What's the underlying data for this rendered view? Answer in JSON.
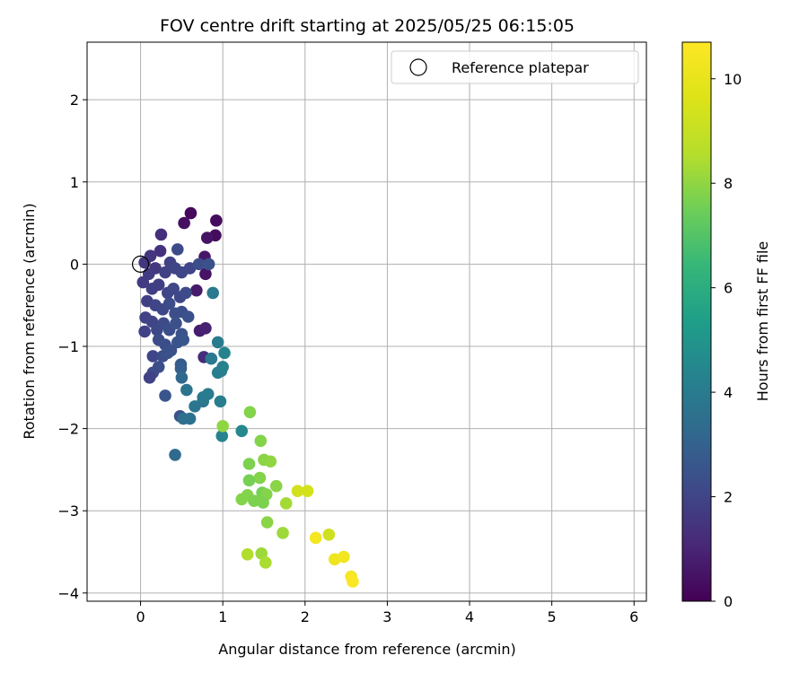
{
  "chart_data": {
    "type": "scatter",
    "title": "FOV centre drift starting at 2025/05/25 06:15:05",
    "xlabel": "Angular distance from reference (arcmin)",
    "ylabel": "Rotation from reference (arcmin)",
    "xlim": [
      -0.65,
      6.15
    ],
    "ylim": [
      -4.1,
      2.7
    ],
    "xticks": [
      0,
      1,
      2,
      3,
      4,
      5,
      6
    ],
    "yticks": [
      -4,
      -3,
      -2,
      -1,
      0,
      1,
      2
    ],
    "xtick_labels": [
      "0",
      "1",
      "2",
      "3",
      "4",
      "5",
      "6"
    ],
    "ytick_labels": [
      "−4",
      "−3",
      "−2",
      "−1",
      "0",
      "1",
      "2"
    ],
    "grid": true,
    "legend": {
      "placement": "top-right",
      "entries": [
        "Reference platepar"
      ]
    },
    "reference_point": {
      "x": 0,
      "y": 0
    },
    "colorbar": {
      "label": "Hours from first FF file",
      "colormap": "viridis",
      "range": [
        0,
        10.7
      ],
      "ticks": [
        0,
        2,
        4,
        6,
        8,
        10
      ],
      "tick_labels": [
        "0",
        "2",
        "4",
        "6",
        "8",
        "10"
      ]
    },
    "points": [
      {
        "x": 0.61,
        "y": 0.62,
        "c": 0.2
      },
      {
        "x": 0.92,
        "y": 0.53,
        "c": 0.3
      },
      {
        "x": 0.53,
        "y": 0.5,
        "c": 0.4
      },
      {
        "x": 0.91,
        "y": 0.35,
        "c": 0.3
      },
      {
        "x": 0.81,
        "y": 0.32,
        "c": 0.5
      },
      {
        "x": 0.78,
        "y": 0.09,
        "c": 0.6
      },
      {
        "x": 0.79,
        "y": -0.12,
        "c": 0.5
      },
      {
        "x": 0.68,
        "y": -0.32,
        "c": 0.7
      },
      {
        "x": 0.72,
        "y": -0.81,
        "c": 0.8
      },
      {
        "x": 0.79,
        "y": -0.78,
        "c": 0.9
      },
      {
        "x": 0.77,
        "y": -1.13,
        "c": 1.2
      },
      {
        "x": 0.25,
        "y": 0.36,
        "c": 1.3
      },
      {
        "x": 0.24,
        "y": 0.16,
        "c": 1.4
      },
      {
        "x": 0.12,
        "y": 0.1,
        "c": 1.5
      },
      {
        "x": 0.05,
        "y": 0.02,
        "c": 1.5
      },
      {
        "x": 0.18,
        "y": -0.05,
        "c": 1.6
      },
      {
        "x": 0.1,
        "y": -0.12,
        "c": 1.7
      },
      {
        "x": 0.03,
        "y": -0.22,
        "c": 1.7
      },
      {
        "x": 0.14,
        "y": -0.3,
        "c": 1.8
      },
      {
        "x": 0.22,
        "y": -0.25,
        "c": 1.8
      },
      {
        "x": 0.3,
        "y": -0.1,
        "c": 1.9
      },
      {
        "x": 0.36,
        "y": 0.02,
        "c": 1.9
      },
      {
        "x": 0.42,
        "y": -0.05,
        "c": 2.0
      },
      {
        "x": 0.45,
        "y": 0.18,
        "c": 2.2
      },
      {
        "x": 0.33,
        "y": -0.35,
        "c": 2.0
      },
      {
        "x": 0.4,
        "y": -0.3,
        "c": 2.1
      },
      {
        "x": 0.48,
        "y": -0.4,
        "c": 2.1
      },
      {
        "x": 0.55,
        "y": -0.35,
        "c": 2.2
      },
      {
        "x": 0.6,
        "y": -0.05,
        "c": 2.0
      },
      {
        "x": 0.71,
        "y": 0.0,
        "c": 2.3
      },
      {
        "x": 0.83,
        "y": 0.0,
        "c": 2.4
      },
      {
        "x": 0.5,
        "y": -0.1,
        "c": 2.1
      },
      {
        "x": 0.08,
        "y": -0.45,
        "c": 1.8
      },
      {
        "x": 0.18,
        "y": -0.5,
        "c": 2.0
      },
      {
        "x": 0.27,
        "y": -0.55,
        "c": 2.1
      },
      {
        "x": 0.35,
        "y": -0.48,
        "c": 2.2
      },
      {
        "x": 0.42,
        "y": -0.6,
        "c": 2.3
      },
      {
        "x": 0.5,
        "y": -0.58,
        "c": 2.3
      },
      {
        "x": 0.58,
        "y": -0.64,
        "c": 2.4
      },
      {
        "x": 0.06,
        "y": -0.65,
        "c": 1.9
      },
      {
        "x": 0.14,
        "y": -0.7,
        "c": 2.0
      },
      {
        "x": 0.05,
        "y": -0.82,
        "c": 1.9
      },
      {
        "x": 0.2,
        "y": -0.8,
        "c": 2.1
      },
      {
        "x": 0.28,
        "y": -0.72,
        "c": 2.2
      },
      {
        "x": 0.35,
        "y": -0.8,
        "c": 2.3
      },
      {
        "x": 0.43,
        "y": -0.72,
        "c": 2.4
      },
      {
        "x": 0.5,
        "y": -0.85,
        "c": 2.5
      },
      {
        "x": 0.22,
        "y": -0.92,
        "c": 2.2
      },
      {
        "x": 0.3,
        "y": -0.98,
        "c": 2.3
      },
      {
        "x": 0.37,
        "y": -1.05,
        "c": 2.4
      },
      {
        "x": 0.45,
        "y": -0.95,
        "c": 2.5
      },
      {
        "x": 0.52,
        "y": -0.92,
        "c": 2.6
      },
      {
        "x": 0.15,
        "y": -1.12,
        "c": 2.0
      },
      {
        "x": 0.27,
        "y": -1.12,
        "c": 2.3
      },
      {
        "x": 0.33,
        "y": -1.08,
        "c": 2.4
      },
      {
        "x": 0.22,
        "y": -1.25,
        "c": 2.3
      },
      {
        "x": 0.15,
        "y": -1.32,
        "c": 2.2
      },
      {
        "x": 0.11,
        "y": -1.38,
        "c": 1.9
      },
      {
        "x": 0.49,
        "y": -1.22,
        "c": 2.8
      },
      {
        "x": 0.49,
        "y": -1.27,
        "c": 2.9
      },
      {
        "x": 0.5,
        "y": -1.38,
        "c": 3.2
      },
      {
        "x": 0.3,
        "y": -1.6,
        "c": 2.6
      },
      {
        "x": 0.48,
        "y": -1.85,
        "c": 2.5
      },
      {
        "x": 0.52,
        "y": -1.88,
        "c": 3.5
      },
      {
        "x": 0.6,
        "y": -1.88,
        "c": 3.6
      },
      {
        "x": 0.56,
        "y": -1.53,
        "c": 3.7
      },
      {
        "x": 0.66,
        "y": -1.73,
        "c": 3.8
      },
      {
        "x": 0.76,
        "y": -1.67,
        "c": 3.8
      },
      {
        "x": 0.76,
        "y": -1.62,
        "c": 3.9
      },
      {
        "x": 0.82,
        "y": -1.58,
        "c": 4.0
      },
      {
        "x": 0.86,
        "y": -1.15,
        "c": 3.9
      },
      {
        "x": 0.94,
        "y": -1.32,
        "c": 4.1
      },
      {
        "x": 0.98,
        "y": -1.3,
        "c": 4.1
      },
      {
        "x": 1.0,
        "y": -1.25,
        "c": 4.2
      },
      {
        "x": 1.02,
        "y": -1.08,
        "c": 4.3
      },
      {
        "x": 0.94,
        "y": -0.95,
        "c": 4.0
      },
      {
        "x": 0.88,
        "y": -0.35,
        "c": 3.9
      },
      {
        "x": 0.42,
        "y": -2.32,
        "c": 3.3
      },
      {
        "x": 0.97,
        "y": -1.67,
        "c": 4.1
      },
      {
        "x": 0.99,
        "y": -2.09,
        "c": 4.3
      },
      {
        "x": 1.23,
        "y": -2.03,
        "c": 4.5
      },
      {
        "x": 1.0,
        "y": -1.97,
        "c": 8.0
      },
      {
        "x": 1.33,
        "y": -1.8,
        "c": 7.8
      },
      {
        "x": 1.46,
        "y": -2.15,
        "c": 7.8
      },
      {
        "x": 1.5,
        "y": -2.38,
        "c": 7.9
      },
      {
        "x": 1.58,
        "y": -2.4,
        "c": 8.0
      },
      {
        "x": 1.32,
        "y": -2.43,
        "c": 7.7
      },
      {
        "x": 1.45,
        "y": -2.6,
        "c": 7.8
      },
      {
        "x": 1.32,
        "y": -2.63,
        "c": 7.6
      },
      {
        "x": 1.65,
        "y": -2.7,
        "c": 7.9
      },
      {
        "x": 1.23,
        "y": -2.86,
        "c": 7.8
      },
      {
        "x": 1.3,
        "y": -2.81,
        "c": 7.8
      },
      {
        "x": 1.38,
        "y": -2.88,
        "c": 7.7
      },
      {
        "x": 1.48,
        "y": -2.78,
        "c": 7.6
      },
      {
        "x": 1.53,
        "y": -2.8,
        "c": 7.8
      },
      {
        "x": 1.49,
        "y": -2.9,
        "c": 7.7
      },
      {
        "x": 1.77,
        "y": -2.91,
        "c": 8.3
      },
      {
        "x": 1.91,
        "y": -2.76,
        "c": 9.3
      },
      {
        "x": 2.03,
        "y": -2.76,
        "c": 9.4
      },
      {
        "x": 1.54,
        "y": -3.14,
        "c": 7.9
      },
      {
        "x": 1.73,
        "y": -3.27,
        "c": 8.2
      },
      {
        "x": 1.3,
        "y": -3.53,
        "c": 8.5
      },
      {
        "x": 1.47,
        "y": -3.52,
        "c": 8.2
      },
      {
        "x": 1.52,
        "y": -3.63,
        "c": 8.4
      },
      {
        "x": 2.13,
        "y": -3.33,
        "c": 10.4
      },
      {
        "x": 2.29,
        "y": -3.29,
        "c": 9.2
      },
      {
        "x": 2.36,
        "y": -3.59,
        "c": 10.2
      },
      {
        "x": 2.47,
        "y": -3.56,
        "c": 10.3
      },
      {
        "x": 2.56,
        "y": -3.8,
        "c": 10.5
      },
      {
        "x": 2.58,
        "y": -3.86,
        "c": 10.6
      }
    ]
  }
}
